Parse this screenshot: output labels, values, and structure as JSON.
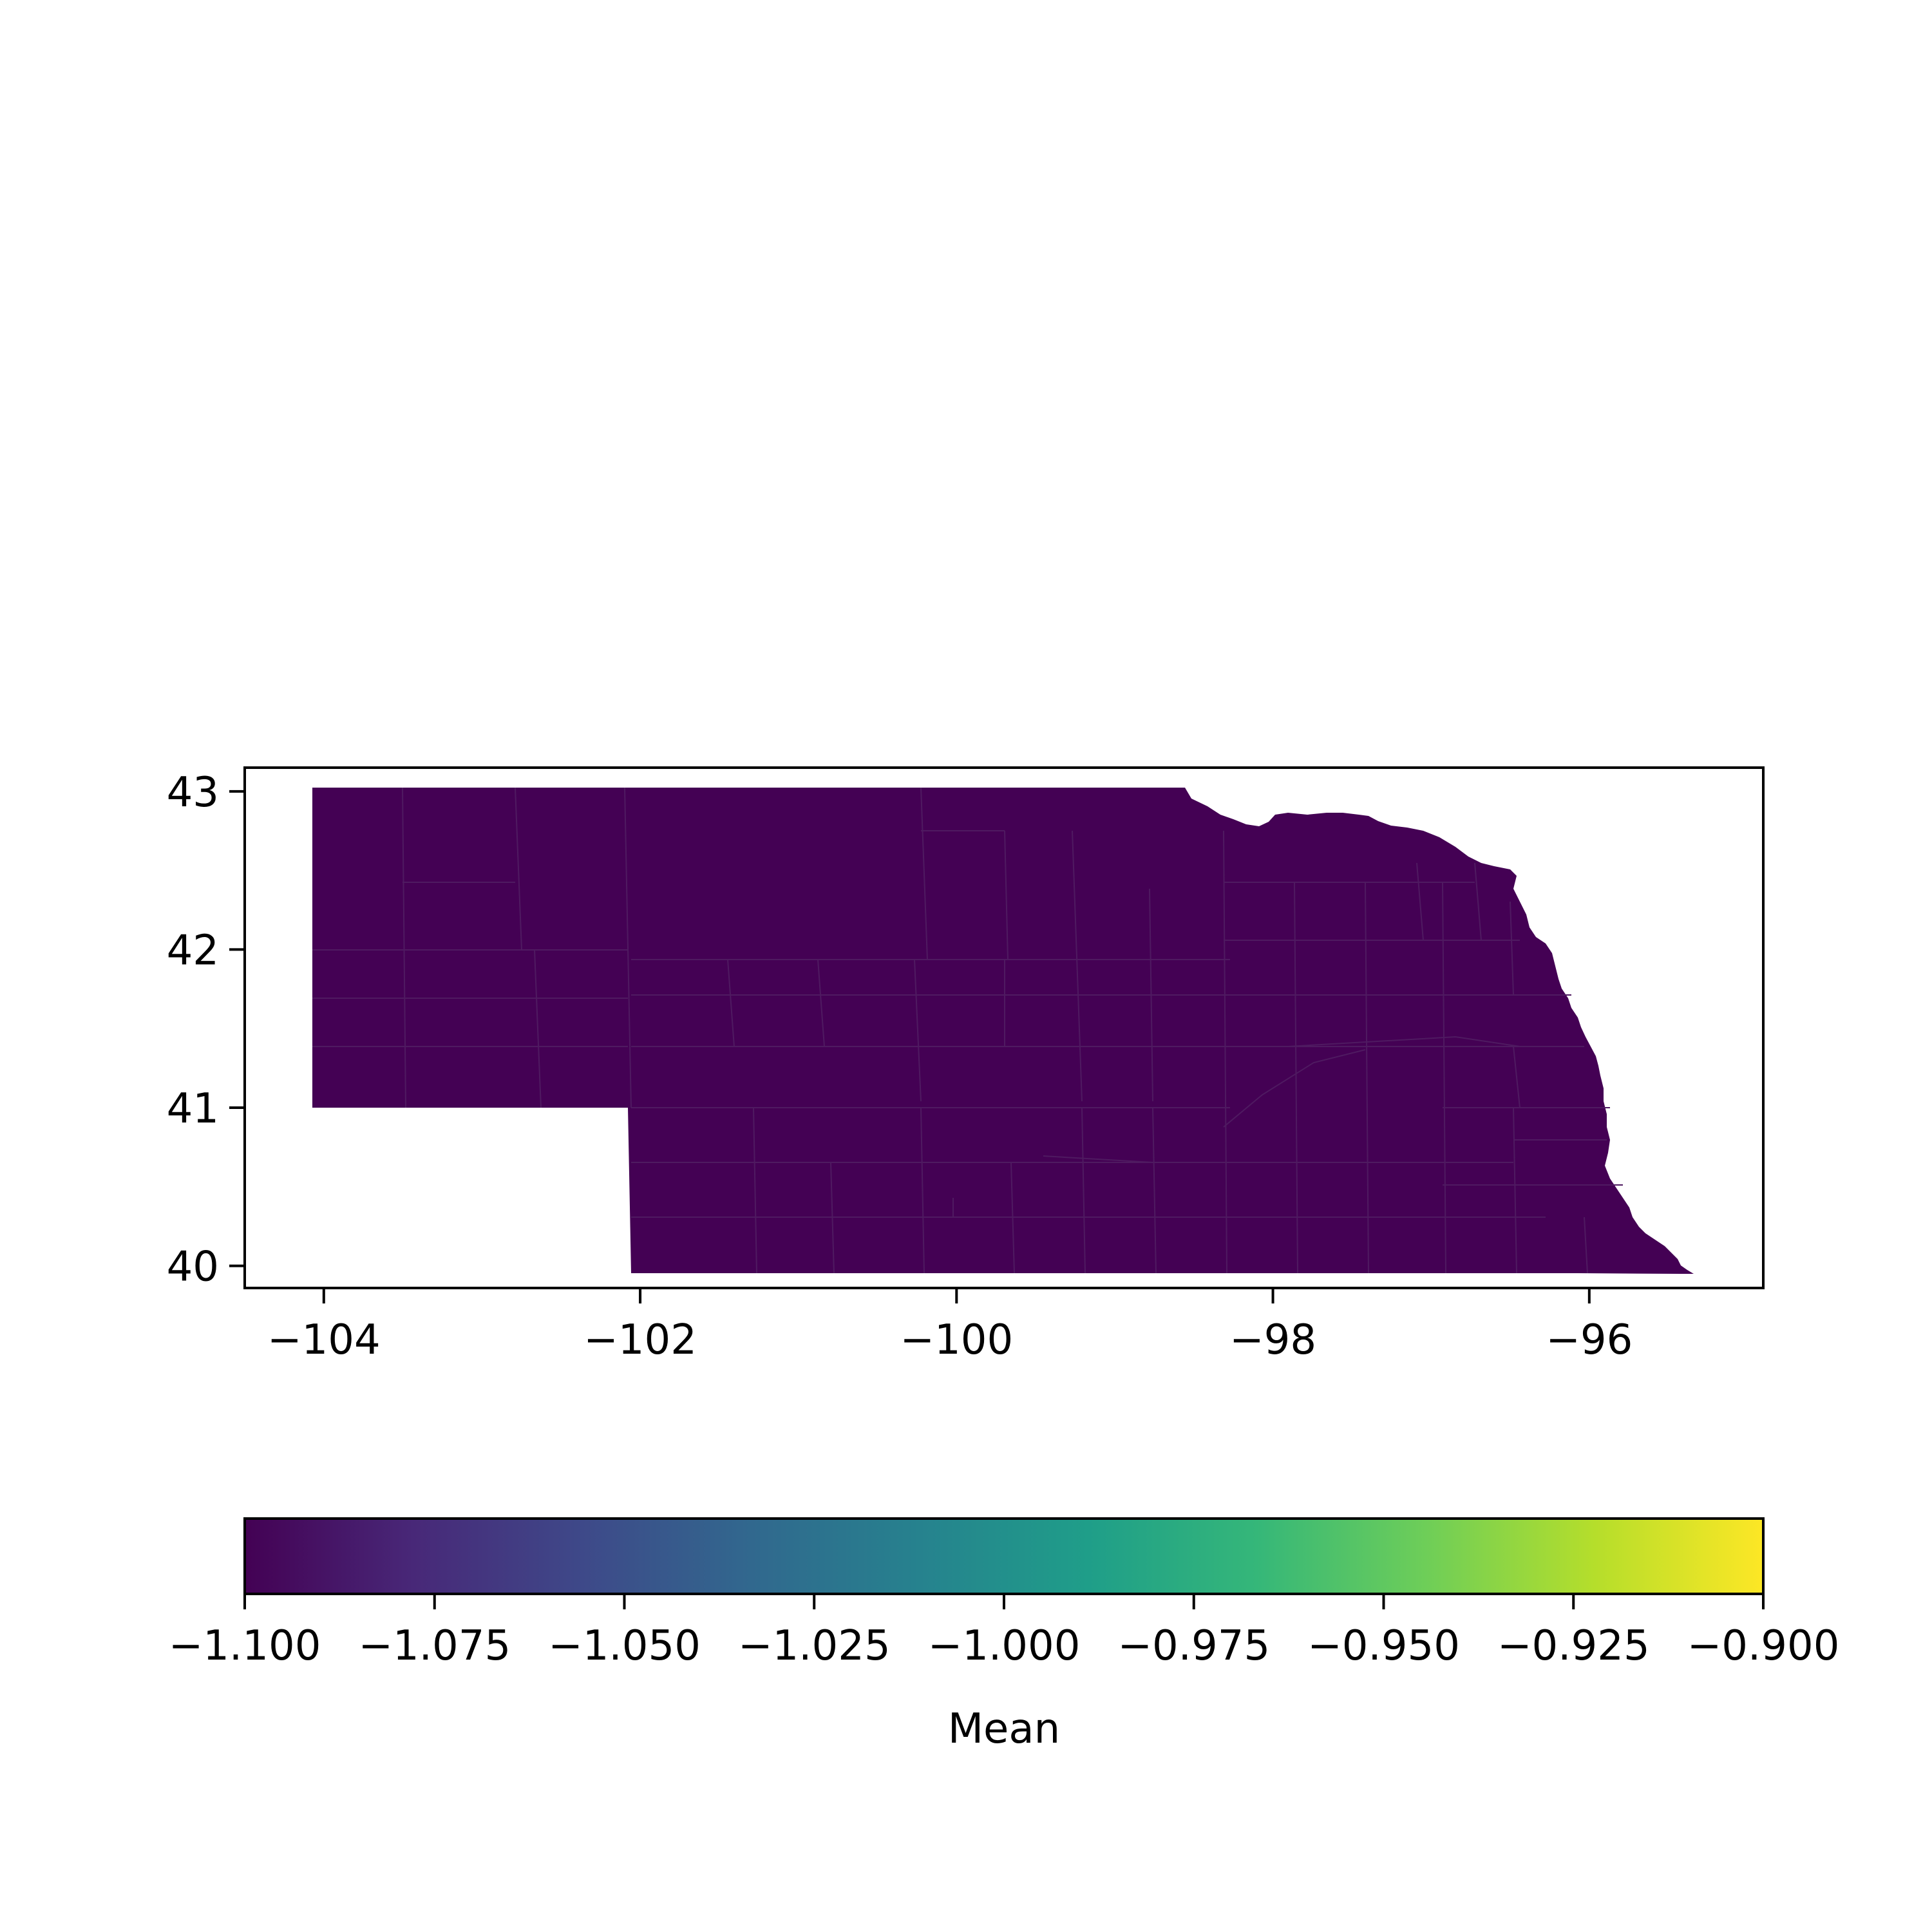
{
  "chart_data": {
    "type": "choropleth",
    "region": "Nebraska counties",
    "fill_color": "#440154",
    "county_line_color": "#4f1a61",
    "x_axis": {
      "ticks": [
        -104,
        -102,
        -100,
        -98,
        -96
      ],
      "tick_labels": [
        "−104",
        "−102",
        "−100",
        "−98",
        "−96"
      ],
      "range": [
        -104.5,
        -94.9
      ]
    },
    "y_axis": {
      "ticks": [
        40,
        41,
        42,
        43
      ],
      "tick_labels": [
        "40",
        "41",
        "42",
        "43"
      ],
      "range": [
        39.86,
        43.15
      ]
    },
    "colorbar": {
      "label": "Mean",
      "colormap": "viridis",
      "colormap_stops": [
        "#440154",
        "#482878",
        "#3e4989",
        "#31688e",
        "#26828e",
        "#1f9e89",
        "#35b779",
        "#6ece58",
        "#b5de2b",
        "#fde725"
      ],
      "range": [
        -1.1,
        -0.9
      ],
      "ticks": [
        -1.1,
        -1.075,
        -1.05,
        -1.025,
        -1.0,
        -0.975,
        -0.95,
        -0.925,
        -0.9
      ],
      "tick_labels": [
        "−1.100",
        "−1.075",
        "−1.050",
        "−1.025",
        "−1.000",
        "−0.975",
        "−0.950",
        "−0.925",
        "−0.900"
      ]
    }
  }
}
